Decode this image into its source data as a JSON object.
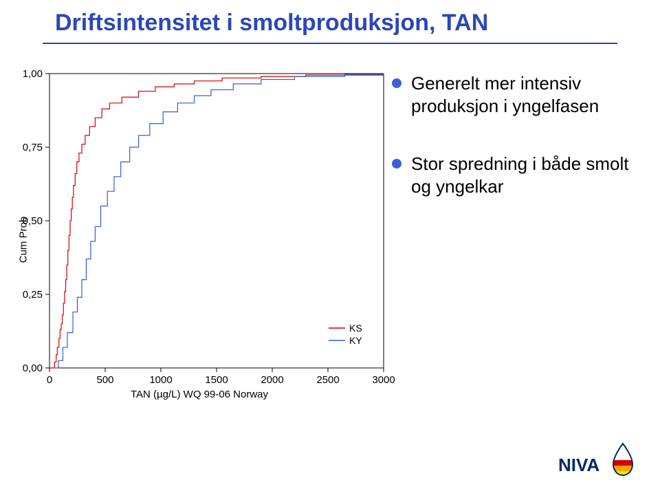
{
  "title": "Driftsintensitet i smoltproduksjon, TAN",
  "title_color": "#2b47b8",
  "underline_color": "#2b47b8",
  "bullets": [
    "Generelt mer intensiv produksjon i yngelfasen",
    "Stor spredning i både smolt og yngelkar"
  ],
  "bullet_dot_color": "#3a5fd9",
  "chart": {
    "type": "step-line-ecdf",
    "background_color": "#ffffff",
    "axis_color": "#000000",
    "xlabel": "TAN (µg/L) WQ 99-06 Norway",
    "ylabel": "Cum Prob",
    "label_fontsize": 15,
    "xlim": [
      0,
      3000
    ],
    "ylim": [
      0,
      1
    ],
    "xticks": [
      0,
      500,
      1000,
      1500,
      2000,
      2500,
      3000
    ],
    "yticks": [
      0.0,
      0.25,
      0.5,
      0.75,
      1.0
    ],
    "ytick_labels": [
      "0,00",
      "0,25",
      "0,50",
      "0,75",
      "1,00"
    ],
    "legend": {
      "entries": [
        "KS",
        "KY"
      ]
    },
    "series": [
      {
        "name": "KS",
        "color": "#d60000",
        "line_width": 1.2,
        "points": [
          [
            0,
            0.0
          ],
          [
            20,
            0.0
          ],
          [
            45,
            0.02
          ],
          [
            60,
            0.045
          ],
          [
            70,
            0.07
          ],
          [
            85,
            0.1
          ],
          [
            95,
            0.13
          ],
          [
            105,
            0.15
          ],
          [
            115,
            0.18
          ],
          [
            125,
            0.22
          ],
          [
            135,
            0.26
          ],
          [
            145,
            0.3
          ],
          [
            155,
            0.35
          ],
          [
            165,
            0.4
          ],
          [
            175,
            0.45
          ],
          [
            185,
            0.5
          ],
          [
            195,
            0.54
          ],
          [
            205,
            0.58
          ],
          [
            215,
            0.62
          ],
          [
            230,
            0.66
          ],
          [
            245,
            0.7
          ],
          [
            265,
            0.73
          ],
          [
            290,
            0.76
          ],
          [
            320,
            0.79
          ],
          [
            360,
            0.82
          ],
          [
            410,
            0.85
          ],
          [
            470,
            0.88
          ],
          [
            540,
            0.9
          ],
          [
            650,
            0.92
          ],
          [
            800,
            0.94
          ],
          [
            950,
            0.955
          ],
          [
            1120,
            0.965
          ],
          [
            1300,
            0.975
          ],
          [
            1550,
            0.985
          ],
          [
            1900,
            0.99
          ],
          [
            2300,
            0.995
          ],
          [
            3000,
            1.0
          ]
        ]
      },
      {
        "name": "KY",
        "color": "#2e5ed1",
        "line_width": 1.2,
        "points": [
          [
            40,
            0.0
          ],
          [
            80,
            0.025
          ],
          [
            120,
            0.07
          ],
          [
            160,
            0.12
          ],
          [
            210,
            0.19
          ],
          [
            250,
            0.24
          ],
          [
            290,
            0.3
          ],
          [
            330,
            0.37
          ],
          [
            370,
            0.43
          ],
          [
            410,
            0.48
          ],
          [
            460,
            0.55
          ],
          [
            520,
            0.6
          ],
          [
            580,
            0.65
          ],
          [
            640,
            0.7
          ],
          [
            720,
            0.75
          ],
          [
            800,
            0.79
          ],
          [
            900,
            0.83
          ],
          [
            1020,
            0.87
          ],
          [
            1150,
            0.9
          ],
          [
            1300,
            0.925
          ],
          [
            1450,
            0.945
          ],
          [
            1650,
            0.965
          ],
          [
            1900,
            0.98
          ],
          [
            2200,
            0.99
          ],
          [
            2650,
            0.997
          ],
          [
            3000,
            1.0
          ]
        ]
      }
    ]
  },
  "logo": {
    "text": "NIVA",
    "text_color": "#002a66",
    "stripes": [
      "#d60000",
      "#f7a600",
      "#ffe600"
    ]
  }
}
